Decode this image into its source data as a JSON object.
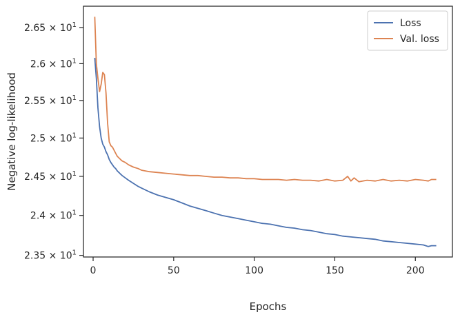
{
  "chart_data": {
    "type": "line",
    "xlabel": "Epochs",
    "ylabel": "Negative log-likelihood",
    "xlim": [
      -6,
      223
    ],
    "ylim": [
      23.48,
      26.8
    ],
    "y_scale": "log",
    "grid": false,
    "legend_position": "top-right",
    "x_ticks": [
      0,
      50,
      100,
      150,
      200
    ],
    "y_ticks": [
      {
        "value": 23.5,
        "mant": "2.35",
        "exp": "1"
      },
      {
        "value": 24.0,
        "mant": "2.4",
        "exp": "1"
      },
      {
        "value": 24.5,
        "mant": "2.45",
        "exp": "1"
      },
      {
        "value": 25.0,
        "mant": "2.5",
        "exp": "1"
      },
      {
        "value": 25.5,
        "mant": "2.55",
        "exp": "1"
      },
      {
        "value": 26.0,
        "mant": "2.6",
        "exp": "1"
      },
      {
        "value": 26.5,
        "mant": "2.65",
        "exp": "1"
      }
    ],
    "times_symbol": "×",
    "tick_base": "10",
    "series": [
      {
        "name": "Loss",
        "color": "#4c72b0",
        "x": [
          1,
          2,
          3,
          4,
          5,
          6,
          7,
          8,
          9,
          10,
          11,
          12,
          13,
          14,
          15,
          16,
          17,
          18,
          20,
          22,
          25,
          28,
          30,
          35,
          40,
          45,
          50,
          55,
          60,
          65,
          70,
          75,
          80,
          85,
          90,
          95,
          100,
          105,
          110,
          115,
          120,
          125,
          130,
          135,
          140,
          145,
          150,
          155,
          160,
          165,
          170,
          175,
          180,
          185,
          190,
          195,
          200,
          205,
          208,
          210,
          213
        ],
        "y": [
          26.08,
          25.8,
          25.4,
          25.15,
          25.0,
          24.92,
          24.88,
          24.82,
          24.78,
          24.72,
          24.68,
          24.65,
          24.62,
          24.6,
          24.57,
          24.55,
          24.53,
          24.51,
          24.48,
          24.45,
          24.41,
          24.37,
          24.35,
          24.3,
          24.26,
          24.23,
          24.2,
          24.16,
          24.12,
          24.09,
          24.06,
          24.03,
          24.0,
          23.98,
          23.96,
          23.94,
          23.92,
          23.9,
          23.89,
          23.87,
          23.85,
          23.84,
          23.82,
          23.81,
          23.79,
          23.77,
          23.76,
          23.74,
          23.73,
          23.72,
          23.71,
          23.7,
          23.68,
          23.67,
          23.66,
          23.65,
          23.64,
          23.63,
          23.61,
          23.62,
          23.62
        ]
      },
      {
        "name": "Val. loss",
        "color": "#dd8452",
        "x": [
          1,
          2,
          3,
          4,
          5,
          6,
          7,
          8,
          9,
          10,
          11,
          12,
          13,
          14,
          15,
          16,
          17,
          18,
          20,
          22,
          25,
          28,
          30,
          35,
          40,
          45,
          50,
          55,
          60,
          65,
          70,
          75,
          80,
          85,
          90,
          95,
          100,
          105,
          110,
          115,
          120,
          125,
          130,
          135,
          140,
          145,
          150,
          155,
          158,
          160,
          162,
          165,
          170,
          175,
          180,
          185,
          190,
          195,
          200,
          205,
          208,
          210,
          213
        ],
        "y": [
          26.65,
          26.0,
          25.8,
          25.62,
          25.72,
          25.88,
          25.85,
          25.6,
          25.2,
          24.95,
          24.9,
          24.88,
          24.84,
          24.8,
          24.76,
          24.74,
          24.72,
          24.7,
          24.68,
          24.65,
          24.62,
          24.6,
          24.58,
          24.56,
          24.55,
          24.54,
          24.53,
          24.52,
          24.51,
          24.51,
          24.5,
          24.49,
          24.49,
          24.48,
          24.48,
          24.47,
          24.47,
          24.46,
          24.46,
          24.46,
          24.45,
          24.46,
          24.45,
          24.45,
          24.44,
          24.46,
          24.44,
          24.45,
          24.5,
          24.44,
          24.48,
          24.43,
          24.45,
          24.44,
          24.46,
          24.44,
          24.45,
          24.44,
          24.46,
          24.45,
          24.44,
          24.46,
          24.46
        ]
      }
    ]
  }
}
